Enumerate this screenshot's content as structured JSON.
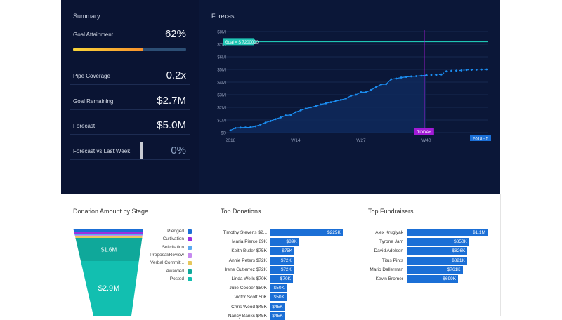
{
  "summary": {
    "title": "Summary",
    "goal_attainment": {
      "label": "Goal Attainment",
      "value": "62%",
      "progress": 0.62
    },
    "rows": [
      {
        "label": "Pipe Coverage",
        "value": "0.2x"
      },
      {
        "label": "Goal Remaining",
        "value": "$2.7M"
      },
      {
        "label": "Forecast",
        "value": "$5.0M"
      },
      {
        "label": "Forecast vs Last Week",
        "value": "0%"
      }
    ]
  },
  "forecast": {
    "title": "Forecast",
    "goal_label": "Goal = $ 7200000",
    "today_label": "TODAY",
    "range_badge": "2018 - 5",
    "colors": {
      "line": "#1b8ef2",
      "goal": "#1fc5b4",
      "today": "#a21bd6"
    }
  },
  "chart_data": [
    {
      "type": "line",
      "title": "Forecast",
      "x_tick_labels": [
        {
          "x": 1,
          "label": "2018"
        },
        {
          "x": 14,
          "label": "W14"
        },
        {
          "x": 27,
          "label": "W27"
        },
        {
          "x": 40,
          "label": "W40"
        }
      ],
      "y_tick_labels": [
        "$0",
        "$1M",
        "$2M",
        "$3M",
        "$4M",
        "$5M",
        "$6M",
        "$7M",
        "$8M"
      ],
      "ylim": [
        0,
        8000000
      ],
      "xlim": [
        1,
        53
      ],
      "goal": 7200000,
      "today_x": 40,
      "series": [
        {
          "style": "solid",
          "x": [
            1,
            2,
            3,
            4,
            5,
            6,
            7,
            8,
            9,
            10,
            11,
            12,
            13,
            14,
            15,
            16,
            17,
            18,
            19,
            20,
            21,
            22,
            23,
            24,
            25,
            26,
            27,
            28,
            29,
            30,
            31,
            32,
            33,
            34,
            35,
            36,
            37,
            38,
            39,
            40
          ],
          "y": [
            0.18,
            0.37,
            0.4,
            0.41,
            0.42,
            0.5,
            0.64,
            0.8,
            0.92,
            1.07,
            1.2,
            1.36,
            1.4,
            1.62,
            1.76,
            1.9,
            2.0,
            2.1,
            2.23,
            2.32,
            2.41,
            2.5,
            2.59,
            2.7,
            2.92,
            3.0,
            3.2,
            3.2,
            3.38,
            3.6,
            3.82,
            3.84,
            4.23,
            4.28,
            4.36,
            4.41,
            4.45,
            4.47,
            4.5,
            4.54
          ]
        },
        {
          "style": "dotted",
          "x": [
            40,
            41,
            42,
            43,
            44,
            45,
            46,
            47,
            48,
            49,
            50,
            51,
            52
          ],
          "y": [
            4.54,
            4.56,
            4.57,
            4.6,
            4.85,
            4.89,
            4.9,
            4.92,
            4.96,
            4.97,
            4.98,
            4.99,
            5.0
          ]
        }
      ],
      "y_unit": "millions"
    },
    {
      "type": "funnel",
      "title": "Donation Amount by Stage",
      "stages": [
        {
          "name": "Pledged",
          "color": "#1b6fd6",
          "value": 0.1
        },
        {
          "name": "Cultivation",
          "color": "#9b30e0",
          "value": 0.03
        },
        {
          "name": "Solicitation",
          "color": "#5aa9f0",
          "value": 0.03
        },
        {
          "name": "Proposal/Review",
          "color": "#c68af0",
          "value": 0.03
        },
        {
          "name": "Verbal Commit...",
          "color": "#e6c75c",
          "value": 0.03
        },
        {
          "name": "Awarded",
          "color": "#0fa89a",
          "value": 1.6,
          "label": "$1.6M"
        },
        {
          "name": "Posted",
          "color": "#12bfb0",
          "value": 2.9,
          "label": "$2.9M"
        }
      ]
    },
    {
      "type": "bar",
      "title": "Top Donations",
      "categories": [
        "Timothy Stevens $2...",
        "Maria Pierce 89K",
        "Keith Butler $75K",
        "Annie Peters $72K",
        "Irene Gutierrez $72K",
        "Linda Wells $70K",
        "Julie Cooper $50K",
        "Victor Scott 50K",
        "Chris Wood $45K",
        "Nancy Banks $45K"
      ],
      "values": [
        225,
        89,
        75,
        72,
        72,
        70,
        50,
        50,
        45,
        45
      ],
      "labels": [
        "$225K",
        "$89K",
        "$75K",
        "$72K",
        "$72K",
        "$70K",
        "$50K",
        "$50K",
        "$45K",
        "$45K"
      ]
    },
    {
      "type": "bar",
      "title": "Top Fundraisers",
      "categories": [
        "Alex Kruglyak",
        "Tyrone Jam",
        "David Adelson",
        "Titus Pints",
        "Mario Dallerman",
        "Kevin Bromer"
      ],
      "values": [
        1100,
        850,
        826,
        821,
        761,
        699
      ],
      "labels": [
        "$1.1M",
        "$850K",
        "$826K",
        "$821K",
        "$761K",
        "$699K"
      ]
    }
  ]
}
